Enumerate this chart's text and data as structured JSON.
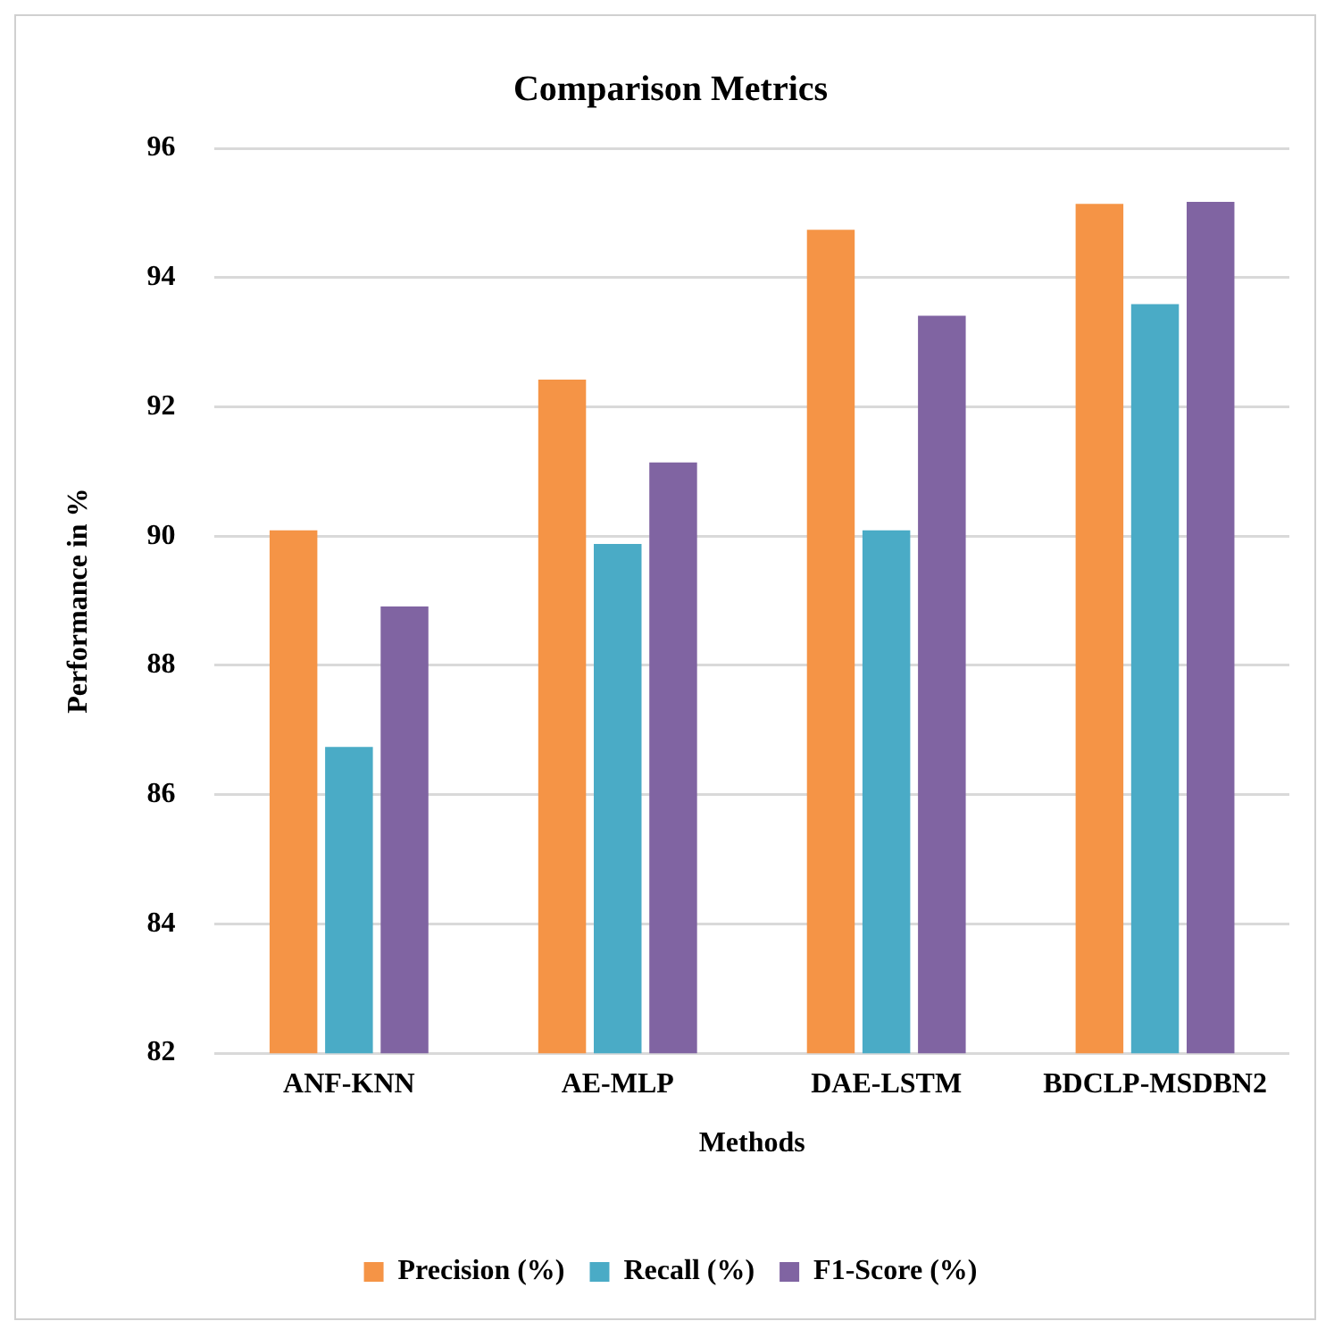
{
  "chart_data": {
    "type": "bar",
    "title": "Comparison Metrics",
    "xlabel": "Methods",
    "ylabel": "Performance in %",
    "categories": [
      "ANF-KNN",
      "AE-MLP",
      "DAE-LSTM",
      "BDCLP-MSDBN2"
    ],
    "series": [
      {
        "name": "Precision (%)",
        "color": "#f59446",
        "values": [
          90.09,
          92.42,
          94.74,
          95.14
        ]
      },
      {
        "name": "Recall (%)",
        "color": "#4aabc6",
        "values": [
          86.74,
          89.88,
          90.09,
          93.59
        ]
      },
      {
        "name": "F1-Score (%)",
        "color": "#8064a2",
        "values": [
          88.91,
          91.14,
          93.41,
          95.17
        ]
      }
    ],
    "ylim": [
      82,
      96
    ],
    "yticks": [
      82,
      84,
      86,
      88,
      90,
      92,
      94,
      96
    ],
    "grid": "y",
    "legend": "bottom"
  }
}
